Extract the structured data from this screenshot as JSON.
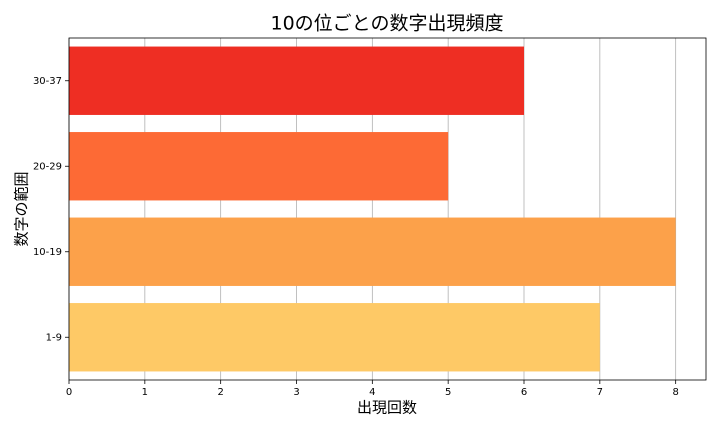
{
  "chart_data": {
    "type": "barh",
    "title": "10の位ごとの数字出現頻度",
    "xlabel": "出現回数",
    "ylabel": "数字の範囲",
    "categories": [
      "1-9",
      "10-19",
      "20-29",
      "30-37"
    ],
    "values": [
      7,
      8,
      5,
      6
    ],
    "colors": [
      "#fec966",
      "#fca14a",
      "#fd6a35",
      "#ee2e23"
    ],
    "xlim": [
      0,
      8.4
    ],
    "xticks": [
      0,
      1,
      2,
      3,
      4,
      5,
      6,
      7,
      8
    ],
    "grid": true
  }
}
